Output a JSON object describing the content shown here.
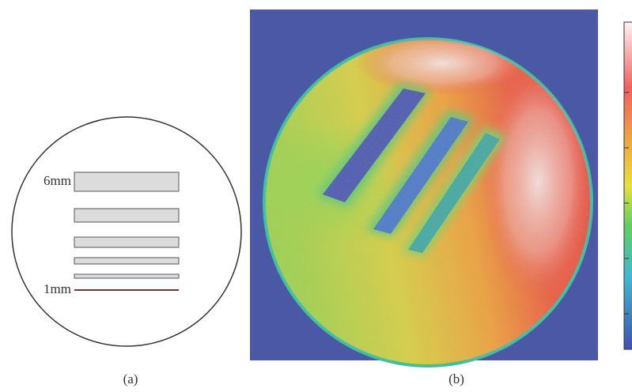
{
  "panel_a": {
    "labels": [
      "6mm",
      "1mm"
    ],
    "caption": "(a)"
  },
  "panel_b": {
    "caption": "(b)"
  }
}
